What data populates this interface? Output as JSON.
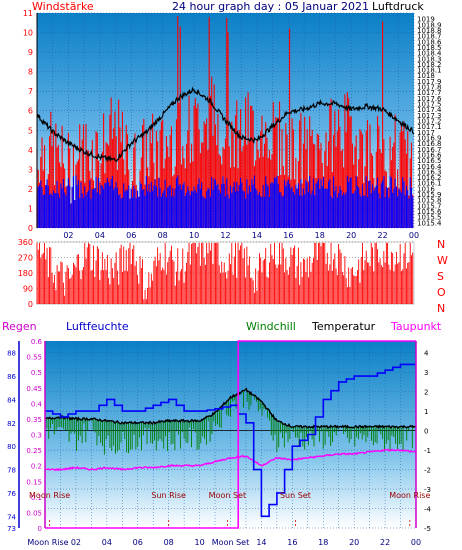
{
  "header": {
    "left_label": "Windstärke",
    "title": "24 hour graph day : 05 Januar 2021",
    "right_label": "Luftdruck"
  },
  "direction_labels": [
    "N",
    "W",
    "S",
    "O",
    "N"
  ],
  "bottom_header": {
    "regen": "Regen",
    "luftfeuchte": "Luftfeuchte",
    "windchill": "Windchill",
    "temperatur": "Temperatur",
    "taupunkt": "Taupunkt"
  },
  "astro": {
    "moon_rise": "Moon Rise",
    "sun_rise": "Sun Rise",
    "moon_set": "Moon Set",
    "sun_set": "Sun Set"
  },
  "bottom_ticks": [
    "Moon Rise",
    "02",
    "04",
    "06",
    "08",
    "10",
    "Moon Set",
    "14",
    "16",
    "18",
    "20",
    "22",
    "00"
  ],
  "colors": {
    "wind": "#ff0000",
    "wind_low": "#0000ff",
    "pressure": "#000000",
    "humidity": "#0000ff",
    "windchill": "#008000",
    "temperature": "#000000",
    "dewpoint": "#ff00ff",
    "rain": "#ff00ff",
    "panel_top": "#0a7fc6",
    "panel_bottom": "#ffffff"
  },
  "chart_data": [
    {
      "type": "bar",
      "title": "24 hour graph day : 05 Januar 2021",
      "x_ticks": [
        "02",
        "04",
        "06",
        "08",
        "10",
        "12",
        "14",
        "16",
        "18",
        "20",
        "22",
        "00"
      ],
      "left_axis": {
        "label": "Windstärke",
        "ticks": [
          "0",
          "1",
          "2",
          "3",
          "4",
          "5",
          "6",
          "7",
          "8",
          "9",
          "10",
          "11"
        ],
        "ylim": [
          0,
          11
        ]
      },
      "right_axis": {
        "label": "Luftdruck",
        "ticks": [
          "1015.4",
          "1015.5",
          "1015.6",
          "1015.7",
          "1015.8",
          "1015.9",
          "1016",
          "1016.1",
          "1016.2",
          "1016.3",
          "1016.4",
          "1016.5",
          "1016.6",
          "1016.7",
          "1016.8",
          "1016.9",
          "1017",
          "1017.1",
          "1017.2",
          "1017.3",
          "1017.4",
          "1017.5",
          "1017.6",
          "1017.7",
          "1017.8",
          "1017.9",
          "1018",
          "1018.1",
          "1018.2",
          "1018.3",
          "1018.4",
          "1018.5",
          "1018.6",
          "1018.7",
          "1018.8",
          "1018.9",
          "1019"
        ],
        "ylim": [
          1015.3,
          1019.1
        ]
      },
      "series": [
        {
          "name": "Windstärke",
          "hours": [
            0,
            1,
            2,
            3,
            4,
            5,
            6,
            7,
            8,
            9,
            10,
            11,
            12,
            13,
            14,
            15,
            16,
            17,
            18,
            19,
            20,
            21,
            22,
            23,
            24
          ],
          "values": [
            4,
            4,
            3,
            4,
            4,
            5,
            3,
            4,
            4,
            5,
            5,
            6,
            5,
            5,
            5,
            5,
            4,
            4,
            4,
            5,
            5,
            4,
            4,
            4,
            3
          ]
        },
        {
          "name": "Luftdruck",
          "hours": [
            0,
            1,
            2,
            3,
            4,
            5,
            6,
            7,
            8,
            9,
            10,
            11,
            12,
            13,
            14,
            15,
            16,
            17,
            18,
            19,
            20,
            21,
            22,
            23,
            24
          ],
          "values": [
            1017.3,
            1017.0,
            1016.8,
            1016.65,
            1016.55,
            1016.5,
            1016.8,
            1017.0,
            1017.3,
            1017.6,
            1017.75,
            1017.55,
            1017.2,
            1016.9,
            1016.85,
            1017.1,
            1017.35,
            1017.4,
            1017.5,
            1017.5,
            1017.4,
            1017.45,
            1017.4,
            1017.2,
            1017.0
          ]
        }
      ]
    },
    {
      "type": "bar",
      "y_ticks": [
        "360",
        "270",
        "180",
        "90",
        "0"
      ],
      "ylim": [
        0,
        360
      ],
      "series": [
        {
          "name": "Windrichtung",
          "hours": [
            0,
            1,
            2,
            3,
            4,
            5,
            6,
            7,
            8,
            9,
            10,
            11,
            12,
            13,
            14,
            15,
            16,
            17,
            18,
            19,
            20,
            21,
            22,
            23,
            24
          ],
          "values": [
            330,
            200,
            120,
            300,
            250,
            180,
            340,
            90,
            310,
            200,
            300,
            330,
            250,
            280,
            150,
            320,
            270,
            200,
            310,
            300,
            180,
            260,
            320,
            300,
            280
          ]
        }
      ]
    },
    {
      "type": "line",
      "left_axis_rain": {
        "label": "Regen",
        "ticks": [
          "0",
          "0.05",
          "0.1",
          "0.15",
          "0.2",
          "0.25",
          "0.3",
          "0.35",
          "0.4",
          "0.45",
          "0.5",
          "0.55",
          "0.6"
        ],
        "ylim": [
          0,
          0.6
        ]
      },
      "left_axis_humidity": {
        "label": "Luftfeuchte",
        "ticks": [
          "73",
          "74",
          "76",
          "78",
          "80",
          "82",
          "84",
          "86",
          "88"
        ],
        "ylim": [
          73,
          89
        ]
      },
      "right_axis": {
        "label": "Temperatur",
        "ticks": [
          "-5",
          "-4",
          "-3",
          "-2",
          "-1",
          "0",
          "1",
          "2",
          "3",
          "4"
        ],
        "ylim": [
          -5,
          4.6
        ]
      },
      "series": [
        {
          "name": "Luftfeuchte",
          "hours": [
            0,
            1,
            2,
            3,
            4,
            5,
            6,
            7,
            8,
            9,
            10,
            11,
            12,
            13,
            14,
            15,
            16,
            17,
            18,
            19,
            20,
            21,
            22,
            23,
            24
          ],
          "values": [
            83,
            82.5,
            83,
            83,
            84,
            83,
            83,
            83.5,
            84,
            83,
            83,
            83.2,
            83.5,
            82,
            74,
            76,
            80,
            81,
            84,
            85.5,
            86,
            86,
            86.5,
            87,
            87
          ]
        },
        {
          "name": "Temperatur",
          "hours": [
            0,
            1,
            2,
            3,
            4,
            5,
            6,
            7,
            8,
            9,
            10,
            11,
            12,
            13,
            14,
            15,
            16,
            17,
            18,
            19,
            20,
            21,
            22,
            23,
            24
          ],
          "values": [
            0.6,
            0.7,
            0.6,
            0.6,
            0.5,
            0.4,
            0.4,
            0.4,
            0.5,
            0.5,
            0.5,
            0.9,
            1.7,
            2.1,
            1.5,
            0.5,
            0.2,
            0.2,
            0.2,
            0.2,
            0.2,
            0.2,
            0.2,
            0.2,
            0.2
          ]
        },
        {
          "name": "Windchill",
          "hours": [
            0,
            1,
            2,
            3,
            4,
            5,
            6,
            7,
            8,
            9,
            10,
            11,
            12,
            13,
            14,
            15,
            16,
            17,
            18,
            19,
            20,
            21,
            22,
            23,
            24
          ],
          "values": [
            0.1,
            -0.2,
            -0.5,
            0.2,
            -0.8,
            -0.6,
            -0.5,
            -0.4,
            -0.6,
            -0.3,
            -0.6,
            0.3,
            1.3,
            1.8,
            1.0,
            -0.5,
            -0.3,
            -0.5,
            -0.4,
            -0.3,
            -0.5,
            -0.4,
            -0.6,
            -0.5,
            -0.3
          ]
        },
        {
          "name": "Taupunkt",
          "hours": [
            0,
            1,
            2,
            3,
            4,
            5,
            6,
            7,
            8,
            9,
            10,
            11,
            12,
            13,
            14,
            15,
            16,
            17,
            18,
            19,
            20,
            21,
            22,
            23,
            24
          ],
          "values": [
            -2.0,
            -2.0,
            -1.9,
            -2.0,
            -1.9,
            -2.0,
            -1.9,
            -1.9,
            -1.8,
            -1.8,
            -1.8,
            -1.6,
            -1.4,
            -1.3,
            -1.8,
            -1.4,
            -1.5,
            -1.4,
            -1.3,
            -1.2,
            -1.2,
            -1.1,
            -1.0,
            -1.0,
            -1.1
          ]
        },
        {
          "name": "Regen",
          "hours": [
            0,
            12.5,
            13.0,
            24
          ],
          "values": [
            0,
            0,
            0.6,
            0.6
          ]
        }
      ]
    }
  ]
}
